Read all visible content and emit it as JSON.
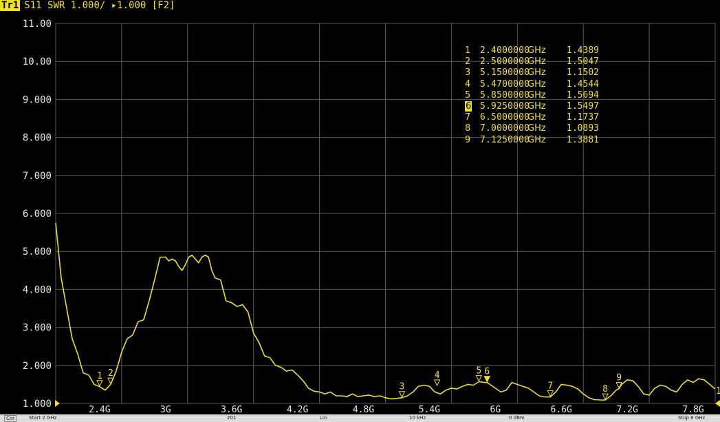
{
  "trace_header": {
    "tag": "Tr1",
    "text": "S11 SWR 1.000/ ▸1.000 [F2]"
  },
  "colors": {
    "background": "#000000",
    "grid": "#5a5a5a",
    "trace": "#f0e020",
    "marker_text": "#f0e020",
    "status_bar": "#dcdcdc"
  },
  "chart_data": {
    "type": "line",
    "x_unit": "GHz",
    "y_unit": "SWR",
    "xlim": [
      2.0,
      8.0
    ],
    "ylim": [
      1.0,
      11.0
    ],
    "y_ticks": [
      1,
      2,
      3,
      4,
      5,
      6,
      7,
      8,
      9,
      10,
      11
    ],
    "y_tick_labels": [
      "1.000",
      "2.000",
      "3.000",
      "4.000",
      "5.000",
      "6.000",
      "7.000",
      "8.000",
      "9.000",
      "10.00",
      "11.00"
    ],
    "x_ticks": [
      2.4,
      3.0,
      3.6,
      4.2,
      4.8,
      5.4,
      6.0,
      6.6,
      7.2,
      7.8
    ],
    "x_tick_labels": [
      "2.4G",
      "3G",
      "3.6G",
      "4.2G",
      "4.8G",
      "5.4G",
      "6G",
      "6.6G",
      "7.2G",
      "7.8G"
    ],
    "grid": true,
    "series": [
      {
        "x": [
          2.0,
          2.05,
          2.1,
          2.15,
          2.2,
          2.25,
          2.3,
          2.35,
          2.4,
          2.45,
          2.5,
          2.55,
          2.6,
          2.65,
          2.7,
          2.75,
          2.8,
          2.85,
          2.9,
          2.95,
          3.0,
          3.03,
          3.06,
          3.09,
          3.12,
          3.15,
          3.18,
          3.21,
          3.24,
          3.27,
          3.3,
          3.33,
          3.36,
          3.39,
          3.42,
          3.45,
          3.5,
          3.55,
          3.6,
          3.65,
          3.7,
          3.75,
          3.8,
          3.85,
          3.9,
          3.95,
          4.0,
          4.05,
          4.1,
          4.15,
          4.2,
          4.25,
          4.3,
          4.35,
          4.4,
          4.45,
          4.5,
          4.55,
          4.6,
          4.65,
          4.7,
          4.75,
          4.8,
          4.85,
          4.9,
          4.95,
          5.0,
          5.05,
          5.1,
          5.15,
          5.2,
          5.25,
          5.3,
          5.35,
          5.4,
          5.45,
          5.5,
          5.55,
          5.6,
          5.65,
          5.7,
          5.75,
          5.8,
          5.85,
          5.9,
          5.925,
          5.95,
          6.0,
          6.05,
          6.1,
          6.15,
          6.2,
          6.25,
          6.3,
          6.35,
          6.4,
          6.45,
          6.5,
          6.55,
          6.6,
          6.65,
          6.7,
          6.75,
          6.8,
          6.85,
          6.9,
          6.95,
          7.0,
          7.05,
          7.1,
          7.125,
          7.15,
          7.2,
          7.25,
          7.3,
          7.35,
          7.4,
          7.45,
          7.5,
          7.55,
          7.6,
          7.65,
          7.7,
          7.75,
          7.8,
          7.85,
          7.9,
          7.95,
          8.0
        ],
        "y": [
          5.75,
          4.3,
          3.5,
          2.7,
          2.3,
          1.8,
          1.75,
          1.5,
          1.44,
          1.35,
          1.5,
          1.85,
          2.35,
          2.7,
          2.8,
          3.15,
          3.2,
          3.7,
          4.25,
          4.85,
          4.85,
          4.75,
          4.8,
          4.75,
          4.6,
          4.5,
          4.65,
          4.85,
          4.9,
          4.8,
          4.7,
          4.85,
          4.9,
          4.85,
          4.5,
          4.3,
          4.25,
          3.7,
          3.65,
          3.55,
          3.6,
          3.4,
          2.85,
          2.6,
          2.25,
          2.2,
          2.0,
          1.95,
          1.85,
          1.88,
          1.75,
          1.6,
          1.4,
          1.32,
          1.3,
          1.25,
          1.3,
          1.2,
          1.2,
          1.18,
          1.25,
          1.18,
          1.2,
          1.22,
          1.18,
          1.2,
          1.15,
          1.12,
          1.13,
          1.15,
          1.2,
          1.3,
          1.45,
          1.48,
          1.45,
          1.3,
          1.25,
          1.35,
          1.4,
          1.38,
          1.45,
          1.5,
          1.48,
          1.57,
          1.55,
          1.55,
          1.5,
          1.4,
          1.3,
          1.35,
          1.55,
          1.5,
          1.45,
          1.4,
          1.3,
          1.2,
          1.17,
          1.17,
          1.3,
          1.5,
          1.48,
          1.45,
          1.38,
          1.25,
          1.15,
          1.1,
          1.09,
          1.09,
          1.2,
          1.35,
          1.39,
          1.5,
          1.62,
          1.6,
          1.45,
          1.25,
          1.22,
          1.4,
          1.48,
          1.45,
          1.35,
          1.3,
          1.5,
          1.62,
          1.55,
          1.65,
          1.62,
          1.5,
          1.38
        ]
      }
    ],
    "markers": [
      {
        "id": "1",
        "x": 2.4,
        "y": 1.4389
      },
      {
        "id": "2",
        "x": 2.5,
        "y": 1.5047
      },
      {
        "id": "3",
        "x": 5.15,
        "y": 1.1502
      },
      {
        "id": "4",
        "x": 5.47,
        "y": 1.4544
      },
      {
        "id": "5",
        "x": 5.85,
        "y": 1.5694
      },
      {
        "id": "6",
        "x": 5.925,
        "y": 1.5497
      },
      {
        "id": "7",
        "x": 6.5,
        "y": 1.1737
      },
      {
        "id": "8",
        "x": 7.0,
        "y": 1.0893
      },
      {
        "id": "9",
        "x": 7.125,
        "y": 1.3881
      }
    ]
  },
  "marker_table": [
    {
      "id": "1",
      "freq": "2.4000000",
      "unit": "GHz",
      "value": "1.4389",
      "active": false
    },
    {
      "id": "2",
      "freq": "2.5000000",
      "unit": "GHz",
      "value": "1.5047",
      "active": false
    },
    {
      "id": "3",
      "freq": "5.1500000",
      "unit": "GHz",
      "value": "1.1502",
      "active": false
    },
    {
      "id": "4",
      "freq": "5.4700000",
      "unit": "GHz",
      "value": "1.4544",
      "active": false
    },
    {
      "id": "5",
      "freq": "5.8500000",
      "unit": "GHz",
      "value": "1.5694",
      "active": false
    },
    {
      "id": "6",
      "freq": "5.9250000",
      "unit": "GHz",
      "value": "1.5497",
      "active": true
    },
    {
      "id": "7",
      "freq": "6.5000000",
      "unit": "GHz",
      "value": "1.1737",
      "active": false
    },
    {
      "id": "8",
      "freq": "7.0000000",
      "unit": "GHz",
      "value": "1.0893",
      "active": false
    },
    {
      "id": "9",
      "freq": "7.1250000",
      "unit": "GHz",
      "value": "1.3881",
      "active": false
    }
  ],
  "reference_marker_label": "1",
  "status_bar": {
    "cor": "Cor",
    "start": "Start 2 GHz",
    "points": "201",
    "sweep_type": "Lin",
    "ifbw": "10 kHz",
    "power": "0 dBm",
    "stop": "Stop 8 GHz"
  }
}
